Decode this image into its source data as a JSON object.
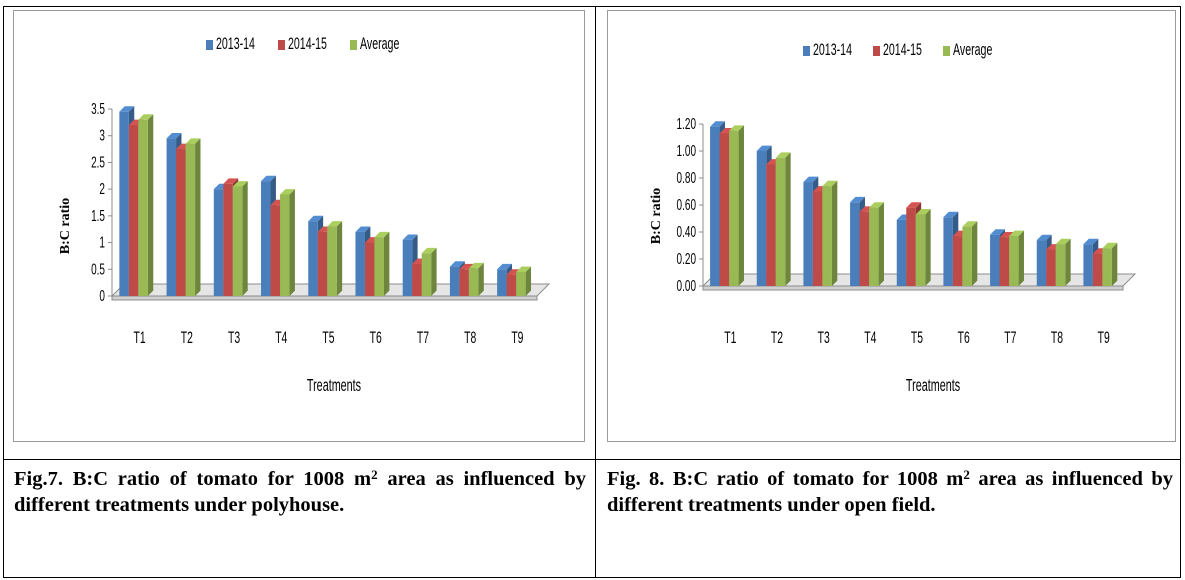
{
  "charts": [
    {
      "caption_text": "Fig.7. B:C ratio of tomato for 1008 m",
      "caption_sup": "2",
      "caption_tail": " area as influenced by different treatments under polyhouse."
    },
    {
      "caption_text": "Fig. 8. B:C ratio of tomato for 1008 m",
      "caption_sup": "2",
      "caption_tail": " area as influenced by different treatments under open field."
    }
  ],
  "chart_data": [
    {
      "type": "bar",
      "title": "",
      "xlabel": "Treatments",
      "ylabel": "B:C ratio",
      "categories": [
        "T1",
        "T2",
        "T3",
        "T4",
        "T5",
        "T6",
        "T7",
        "T8",
        "T9"
      ],
      "series": [
        {
          "name": "2013-14",
          "color": "#4a7ebb",
          "values": [
            3.45,
            2.95,
            2.0,
            2.15,
            1.4,
            1.2,
            1.05,
            0.55,
            0.5
          ]
        },
        {
          "name": "2014-15",
          "color": "#be4b48",
          "values": [
            3.2,
            2.75,
            2.1,
            1.7,
            1.2,
            1.0,
            0.6,
            0.5,
            0.4
          ]
        },
        {
          "name": "Average",
          "color": "#98b954",
          "values": [
            3.3,
            2.85,
            2.05,
            1.9,
            1.3,
            1.1,
            0.8,
            0.52,
            0.45
          ]
        }
      ],
      "ylim": [
        0,
        3.5
      ],
      "yticks": [
        "0",
        "0.5",
        "1",
        "1.5",
        "2",
        "2.5",
        "3",
        "3.5"
      ],
      "legend": "top",
      "grid": false
    },
    {
      "type": "bar",
      "title": "",
      "xlabel": "Treatments",
      "ylabel": "B:C ratio",
      "categories": [
        "T1",
        "T2",
        "T3",
        "T4",
        "T5",
        "T6",
        "T7",
        "T8",
        "T9"
      ],
      "series": [
        {
          "name": "2013-14",
          "color": "#4a7ebb",
          "values": [
            1.18,
            1.0,
            0.77,
            0.62,
            0.49,
            0.51,
            0.38,
            0.34,
            0.31
          ]
        },
        {
          "name": "2014-15",
          "color": "#be4b48",
          "values": [
            1.13,
            0.9,
            0.7,
            0.55,
            0.58,
            0.37,
            0.36,
            0.27,
            0.24
          ]
        },
        {
          "name": "Average",
          "color": "#98b954",
          "values": [
            1.15,
            0.95,
            0.74,
            0.58,
            0.53,
            0.44,
            0.37,
            0.31,
            0.28
          ]
        }
      ],
      "ylim": [
        0,
        1.2
      ],
      "yticks": [
        "0.00",
        "0.20",
        "0.40",
        "0.60",
        "0.80",
        "1.00",
        "1.20"
      ],
      "legend": "top",
      "grid": false
    }
  ]
}
